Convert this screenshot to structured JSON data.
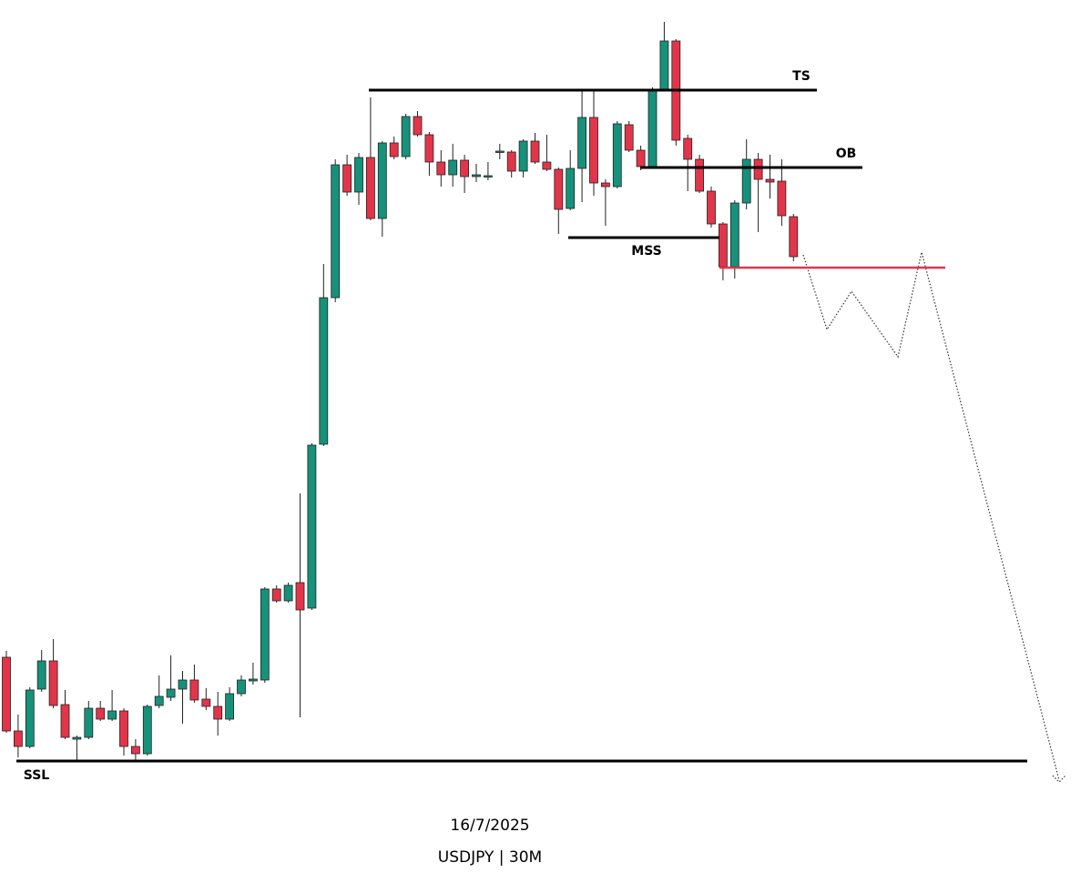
{
  "chart_data": {
    "type": "candlestick",
    "date": "16/7/2025",
    "title": "USDJPY | 30M",
    "ylim": [
      0,
      970
    ],
    "up_color": "#16917a",
    "down_color": "#e2354a",
    "ohlc": [
      [
        248,
        255,
        165,
        167
      ],
      [
        167,
        185,
        138,
        150
      ],
      [
        150,
        215,
        148,
        212
      ],
      [
        213,
        256,
        210,
        244
      ],
      [
        244,
        268,
        192,
        195
      ],
      [
        196,
        212,
        158,
        160
      ],
      [
        158,
        162,
        134,
        160
      ],
      [
        160,
        200,
        158,
        192
      ],
      [
        192,
        200,
        178,
        180
      ],
      [
        180,
        212,
        178,
        189
      ],
      [
        189,
        192,
        140,
        150
      ],
      [
        150,
        158,
        134,
        142
      ],
      [
        142,
        196,
        140,
        194
      ],
      [
        195,
        228,
        192,
        205
      ],
      [
        204,
        250,
        200,
        213
      ],
      [
        213,
        233,
        175,
        223
      ],
      [
        223,
        240,
        198,
        201
      ],
      [
        202,
        214,
        190,
        194
      ],
      [
        194,
        210,
        162,
        180
      ],
      [
        180,
        215,
        178,
        208
      ],
      [
        208,
        228,
        205,
        223
      ],
      [
        222,
        242,
        218,
        224
      ],
      [
        223,
        325,
        220,
        323
      ],
      [
        323,
        327,
        308,
        310
      ],
      [
        310,
        330,
        308,
        327
      ],
      [
        330,
        428,
        182,
        300
      ],
      [
        302,
        483,
        300,
        481
      ],
      [
        482,
        680,
        480,
        643
      ],
      [
        643,
        795,
        638,
        789
      ],
      [
        789,
        800,
        755,
        759
      ],
      [
        759,
        802,
        745,
        797
      ],
      [
        797,
        863,
        728,
        730
      ],
      [
        730,
        815,
        710,
        813
      ],
      [
        813,
        820,
        795,
        798
      ],
      [
        798,
        845,
        795,
        842
      ],
      [
        842,
        848,
        820,
        822
      ],
      [
        822,
        825,
        777,
        792
      ],
      [
        792,
        805,
        765,
        778
      ],
      [
        778,
        812,
        765,
        794
      ],
      [
        794,
        800,
        758,
        776
      ],
      [
        776,
        790,
        770,
        778
      ],
      [
        776,
        792,
        772,
        777
      ],
      [
        803,
        812,
        795,
        804
      ],
      [
        803,
        805,
        775,
        782
      ],
      [
        782,
        817,
        775,
        815
      ],
      [
        815,
        824,
        790,
        792
      ],
      [
        792,
        822,
        782,
        784
      ],
      [
        784,
        786,
        713,
        740
      ],
      [
        741,
        805,
        739,
        785
      ],
      [
        785,
        870,
        748,
        841
      ],
      [
        841,
        870,
        755,
        769
      ],
      [
        769,
        773,
        722,
        765
      ],
      [
        765,
        837,
        763,
        834
      ],
      [
        833,
        837,
        803,
        805
      ],
      [
        805,
        810,
        783,
        787
      ],
      [
        787,
        874,
        785,
        872
      ],
      [
        872,
        946,
        870,
        925
      ],
      [
        925,
        927,
        810,
        816
      ],
      [
        818,
        822,
        760,
        795
      ],
      [
        795,
        800,
        758,
        760
      ],
      [
        760,
        765,
        720,
        724
      ],
      [
        724,
        726,
        662,
        677
      ],
      [
        677,
        750,
        664,
        747
      ],
      [
        747,
        817,
        740,
        795
      ],
      [
        795,
        802,
        715,
        773
      ],
      [
        773,
        800,
        752,
        770
      ],
      [
        771,
        795,
        722,
        733
      ],
      [
        732,
        735,
        683,
        688
      ]
    ],
    "levels": [
      {
        "label": "TS",
        "value": 871,
        "color": "#000000"
      },
      {
        "label": "OB",
        "value": 786,
        "color": "#000000"
      },
      {
        "label": "MSS",
        "value": 709,
        "color": "#000000"
      },
      {
        "value": 676,
        "color": "#e2354a"
      },
      {
        "label": "SSL",
        "value": 134,
        "color": "#000000"
      }
    ]
  }
}
